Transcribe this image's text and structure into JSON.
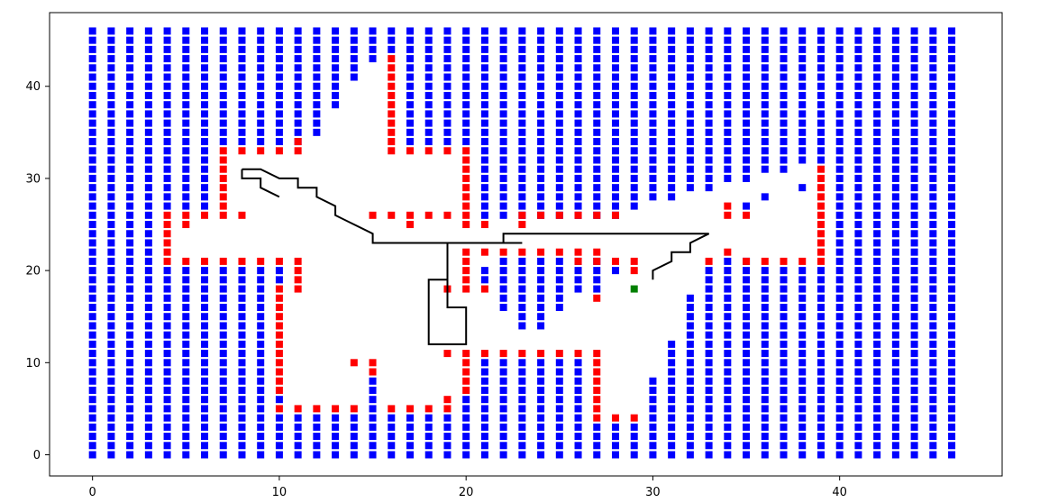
{
  "chart_data": {
    "type": "scatter",
    "title": "",
    "xlabel": "",
    "ylabel": "",
    "xlim": [
      -2.3,
      48.7
    ],
    "ylim": [
      -2.3,
      48.0
    ],
    "xticks": [
      0,
      10,
      20,
      30,
      40
    ],
    "yticks": [
      0,
      10,
      20,
      30,
      40
    ],
    "grid": false,
    "colors": {
      "obstacle": "#0000ff",
      "boundary": "#ff0000",
      "goal": "#008000",
      "path": "#000000"
    },
    "obstacle_columns": [
      {
        "x": 0,
        "ranges": [
          [
            0,
            46
          ]
        ]
      },
      {
        "x": 1,
        "ranges": [
          [
            0,
            46
          ]
        ]
      },
      {
        "x": 2,
        "ranges": [
          [
            0,
            46
          ]
        ]
      },
      {
        "x": 3,
        "ranges": [
          [
            0,
            46
          ]
        ]
      },
      {
        "x": 4,
        "ranges": [
          [
            0,
            20
          ],
          [
            27,
            46
          ]
        ]
      },
      {
        "x": 5,
        "ranges": [
          [
            0,
            20
          ],
          [
            27,
            46
          ]
        ]
      },
      {
        "x": 6,
        "ranges": [
          [
            0,
            20
          ],
          [
            27,
            46
          ]
        ]
      },
      {
        "x": 7,
        "ranges": [
          [
            0,
            20
          ],
          [
            34,
            46
          ]
        ]
      },
      {
        "x": 8,
        "ranges": [
          [
            0,
            20
          ],
          [
            34,
            46
          ]
        ]
      },
      {
        "x": 9,
        "ranges": [
          [
            0,
            20
          ],
          [
            34,
            46
          ]
        ]
      },
      {
        "x": 10,
        "ranges": [
          [
            0,
            4
          ],
          [
            6,
            6
          ],
          [
            19,
            20
          ],
          [
            34,
            46
          ]
        ]
      },
      {
        "x": 11,
        "ranges": [
          [
            0,
            4
          ],
          [
            34,
            46
          ]
        ]
      },
      {
        "x": 12,
        "ranges": [
          [
            0,
            4
          ],
          [
            35,
            46
          ]
        ]
      },
      {
        "x": 13,
        "ranges": [
          [
            0,
            4
          ],
          [
            38,
            46
          ]
        ]
      },
      {
        "x": 14,
        "ranges": [
          [
            0,
            4
          ],
          [
            41,
            46
          ]
        ]
      },
      {
        "x": 15,
        "ranges": [
          [
            0,
            8
          ],
          [
            43,
            46
          ]
        ]
      },
      {
        "x": 16,
        "ranges": [
          [
            0,
            4
          ],
          [
            44,
            46
          ]
        ]
      },
      {
        "x": 17,
        "ranges": [
          [
            0,
            4
          ],
          [
            34,
            46
          ]
        ]
      },
      {
        "x": 18,
        "ranges": [
          [
            0,
            4
          ],
          [
            34,
            46
          ]
        ]
      },
      {
        "x": 19,
        "ranges": [
          [
            0,
            4
          ],
          [
            34,
            46
          ]
        ]
      },
      {
        "x": 20,
        "ranges": [
          [
            0,
            6
          ],
          [
            34,
            46
          ]
        ]
      },
      {
        "x": 21,
        "ranges": [
          [
            0,
            10
          ],
          [
            19,
            20
          ],
          [
            26,
            46
          ]
        ]
      },
      {
        "x": 22,
        "ranges": [
          [
            0,
            10
          ],
          [
            16,
            21
          ],
          [
            26,
            46
          ]
        ]
      },
      {
        "x": 23,
        "ranges": [
          [
            0,
            10
          ],
          [
            14,
            21
          ],
          [
            26,
            46
          ]
        ]
      },
      {
        "x": 24,
        "ranges": [
          [
            0,
            10
          ],
          [
            14,
            21
          ],
          [
            26,
            46
          ]
        ]
      },
      {
        "x": 25,
        "ranges": [
          [
            0,
            10
          ],
          [
            16,
            21
          ],
          [
            26,
            46
          ]
        ]
      },
      {
        "x": 26,
        "ranges": [
          [
            0,
            10
          ],
          [
            18,
            21
          ],
          [
            26,
            46
          ]
        ]
      },
      {
        "x": 27,
        "ranges": [
          [
            0,
            3
          ],
          [
            18,
            21
          ],
          [
            26,
            46
          ]
        ]
      },
      {
        "x": 28,
        "ranges": [
          [
            0,
            3
          ],
          [
            20,
            20
          ],
          [
            26,
            46
          ]
        ]
      },
      {
        "x": 29,
        "ranges": [
          [
            0,
            3
          ],
          [
            27,
            46
          ]
        ]
      },
      {
        "x": 30,
        "ranges": [
          [
            0,
            8
          ],
          [
            28,
            46
          ]
        ]
      },
      {
        "x": 31,
        "ranges": [
          [
            0,
            12
          ],
          [
            28,
            46
          ]
        ]
      },
      {
        "x": 32,
        "ranges": [
          [
            0,
            17
          ],
          [
            29,
            46
          ]
        ]
      },
      {
        "x": 33,
        "ranges": [
          [
            0,
            20
          ],
          [
            29,
            46
          ]
        ]
      },
      {
        "x": 34,
        "ranges": [
          [
            0,
            21
          ],
          [
            30,
            46
          ]
        ]
      },
      {
        "x": 35,
        "ranges": [
          [
            0,
            21
          ],
          [
            27,
            27
          ],
          [
            30,
            46
          ]
        ]
      },
      {
        "x": 36,
        "ranges": [
          [
            0,
            20
          ],
          [
            28,
            28
          ],
          [
            31,
            46
          ]
        ]
      },
      {
        "x": 37,
        "ranges": [
          [
            0,
            20
          ],
          [
            31,
            46
          ]
        ]
      },
      {
        "x": 38,
        "ranges": [
          [
            0,
            20
          ],
          [
            29,
            29
          ],
          [
            32,
            46
          ]
        ]
      },
      {
        "x": 39,
        "ranges": [
          [
            0,
            20
          ],
          [
            32,
            46
          ]
        ]
      },
      {
        "x": 40,
        "ranges": [
          [
            0,
            46
          ]
        ]
      },
      {
        "x": 41,
        "ranges": [
          [
            0,
            46
          ]
        ]
      },
      {
        "x": 42,
        "ranges": [
          [
            0,
            46
          ]
        ]
      },
      {
        "x": 43,
        "ranges": [
          [
            0,
            46
          ]
        ]
      },
      {
        "x": 44,
        "ranges": [
          [
            0,
            46
          ]
        ]
      },
      {
        "x": 45,
        "ranges": [
          [
            0,
            46
          ]
        ]
      },
      {
        "x": 46,
        "ranges": [
          [
            0,
            46
          ]
        ]
      }
    ],
    "boundary_points": [
      [
        4,
        21
      ],
      [
        5,
        21
      ],
      [
        6,
        21
      ],
      [
        7,
        21
      ],
      [
        8,
        21
      ],
      [
        9,
        21
      ],
      [
        10,
        21
      ],
      [
        11,
        21
      ],
      [
        11,
        20
      ],
      [
        11,
        19
      ],
      [
        11,
        18
      ],
      [
        4,
        22
      ],
      [
        4,
        23
      ],
      [
        4,
        24
      ],
      [
        4,
        25
      ],
      [
        4,
        26
      ],
      [
        5,
        26
      ],
      [
        5,
        25
      ],
      [
        6,
        26
      ],
      [
        8,
        26
      ],
      [
        7,
        26
      ],
      [
        7,
        27
      ],
      [
        7,
        28
      ],
      [
        7,
        29
      ],
      [
        7,
        30
      ],
      [
        7,
        31
      ],
      [
        7,
        32
      ],
      [
        7,
        33
      ],
      [
        8,
        33
      ],
      [
        9,
        33
      ],
      [
        10,
        33
      ],
      [
        11,
        33
      ],
      [
        11,
        34
      ],
      [
        16,
        33
      ],
      [
        16,
        34
      ],
      [
        16,
        35
      ],
      [
        16,
        36
      ],
      [
        16,
        37
      ],
      [
        16,
        38
      ],
      [
        16,
        39
      ],
      [
        16,
        40
      ],
      [
        16,
        41
      ],
      [
        16,
        42
      ],
      [
        16,
        43
      ],
      [
        17,
        33
      ],
      [
        18,
        33
      ],
      [
        19,
        33
      ],
      [
        20,
        33
      ],
      [
        20,
        32
      ],
      [
        20,
        31
      ],
      [
        20,
        30
      ],
      [
        20,
        29
      ],
      [
        20,
        28
      ],
      [
        20,
        27
      ],
      [
        20,
        26
      ],
      [
        20,
        25
      ],
      [
        21,
        25
      ],
      [
        15,
        26
      ],
      [
        16,
        26
      ],
      [
        17,
        26
      ],
      [
        17,
        25
      ],
      [
        18,
        26
      ],
      [
        19,
        26
      ],
      [
        23,
        26
      ],
      [
        23,
        25
      ],
      [
        24,
        26
      ],
      [
        25,
        26
      ],
      [
        26,
        26
      ],
      [
        27,
        26
      ],
      [
        28,
        26
      ],
      [
        10,
        18
      ],
      [
        10,
        17
      ],
      [
        10,
        16
      ],
      [
        10,
        15
      ],
      [
        10,
        14
      ],
      [
        10,
        13
      ],
      [
        10,
        12
      ],
      [
        10,
        11
      ],
      [
        10,
        10
      ],
      [
        10,
        9
      ],
      [
        10,
        8
      ],
      [
        10,
        7
      ],
      [
        10,
        5
      ],
      [
        11,
        5
      ],
      [
        12,
        5
      ],
      [
        13,
        5
      ],
      [
        14,
        5
      ],
      [
        16,
        5
      ],
      [
        17,
        5
      ],
      [
        18,
        5
      ],
      [
        19,
        5
      ],
      [
        19,
        6
      ],
      [
        14,
        10
      ],
      [
        15,
        10
      ],
      [
        15,
        9
      ],
      [
        19,
        11
      ],
      [
        20,
        11
      ],
      [
        21,
        11
      ],
      [
        22,
        11
      ],
      [
        23,
        11
      ],
      [
        24,
        11
      ],
      [
        25,
        11
      ],
      [
        26,
        11
      ],
      [
        27,
        11
      ],
      [
        20,
        10
      ],
      [
        20,
        9
      ],
      [
        20,
        8
      ],
      [
        20,
        7
      ],
      [
        27,
        10
      ],
      [
        27,
        9
      ],
      [
        27,
        8
      ],
      [
        27,
        7
      ],
      [
        27,
        6
      ],
      [
        27,
        5
      ],
      [
        27,
        4
      ],
      [
        28,
        4
      ],
      [
        29,
        4
      ],
      [
        20,
        22
      ],
      [
        20,
        21
      ],
      [
        20,
        20
      ],
      [
        20,
        19
      ],
      [
        20,
        18
      ],
      [
        19,
        18
      ],
      [
        21,
        22
      ],
      [
        21,
        18
      ],
      [
        22,
        22
      ],
      [
        23,
        22
      ],
      [
        24,
        22
      ],
      [
        25,
        22
      ],
      [
        26,
        22
      ],
      [
        26,
        21
      ],
      [
        27,
        22
      ],
      [
        27,
        21
      ],
      [
        27,
        17
      ],
      [
        28,
        21
      ],
      [
        29,
        21
      ],
      [
        29,
        20
      ],
      [
        33,
        21
      ],
      [
        34,
        22
      ],
      [
        34,
        26
      ],
      [
        34,
        27
      ],
      [
        35,
        26
      ],
      [
        35,
        21
      ],
      [
        36,
        21
      ],
      [
        37,
        21
      ],
      [
        38,
        21
      ],
      [
        39,
        21
      ],
      [
        39,
        22
      ],
      [
        39,
        23
      ],
      [
        39,
        24
      ],
      [
        39,
        25
      ],
      [
        39,
        26
      ],
      [
        39,
        27
      ],
      [
        39,
        28
      ],
      [
        39,
        29
      ],
      [
        39,
        30
      ],
      [
        39,
        31
      ]
    ],
    "goal_point": [
      29,
      18
    ],
    "path": [
      [
        8,
        31
      ],
      [
        9,
        31
      ],
      [
        10,
        30
      ],
      [
        11,
        30
      ],
      [
        11,
        29
      ],
      [
        12,
        29
      ],
      [
        12,
        28
      ],
      [
        13,
        27
      ],
      [
        13,
        26
      ],
      [
        14,
        25
      ],
      [
        15,
        24
      ],
      [
        15,
        23
      ],
      [
        16,
        23
      ],
      [
        17,
        23
      ],
      [
        18,
        23
      ],
      [
        19,
        23
      ],
      [
        20,
        23
      ],
      [
        21,
        23
      ],
      [
        22,
        23
      ],
      [
        23,
        23
      ],
      [
        22,
        23
      ],
      [
        22,
        24
      ],
      [
        23,
        24
      ],
      [
        24,
        24
      ],
      [
        25,
        24
      ],
      [
        26,
        24
      ],
      [
        27,
        24
      ],
      [
        28,
        24
      ],
      [
        29,
        24
      ],
      [
        30,
        24
      ],
      [
        31,
        24
      ],
      [
        32,
        24
      ],
      [
        33,
        24
      ],
      [
        32,
        23
      ],
      [
        32,
        22
      ],
      [
        31,
        22
      ],
      [
        31,
        21
      ],
      [
        30,
        20
      ],
      [
        30,
        19
      ]
    ],
    "path_branch_a": [
      [
        8,
        31
      ],
      [
        8,
        30
      ],
      [
        9,
        30
      ],
      [
        9,
        29
      ],
      [
        10,
        28
      ]
    ],
    "path_branch_b": [
      [
        19,
        23
      ],
      [
        19,
        16
      ],
      [
        20,
        16
      ],
      [
        20,
        12
      ],
      [
        18,
        12
      ],
      [
        18,
        19
      ],
      [
        19,
        19
      ]
    ]
  }
}
